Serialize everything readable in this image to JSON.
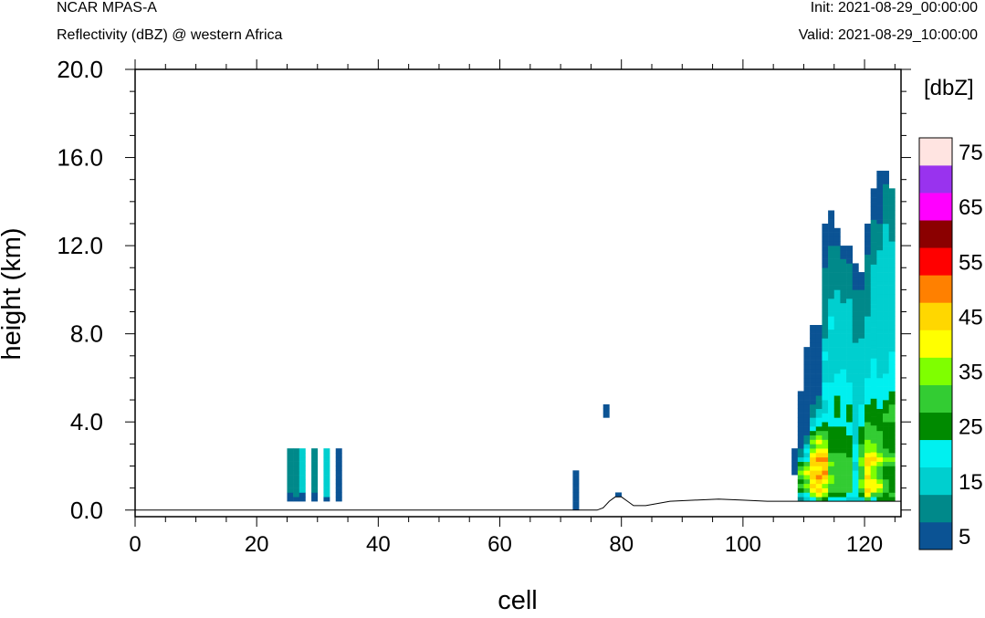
{
  "header": {
    "model": "NCAR MPAS-A",
    "field": "Reflectivity (dBZ) @ western Africa",
    "init": "Init: 2021-08-29_00:00:00",
    "valid": "Valid: 2021-08-29_10:00:00"
  },
  "chart_data": {
    "type": "heatmap",
    "title": "Reflectivity (dBZ) @ western Africa",
    "xlabel": "cell",
    "ylabel": "height (km)",
    "xlim": [
      0,
      126
    ],
    "ylim": [
      -0.3,
      20.0
    ],
    "xticks": [
      0,
      20,
      40,
      60,
      80,
      100,
      120
    ],
    "xtick_labels": [
      "0",
      "20",
      "40",
      "60",
      "80",
      "100",
      "120"
    ],
    "yticks": [
      0,
      4,
      8,
      12,
      16,
      20
    ],
    "ytick_labels": [
      "0.0",
      "4.0",
      "8.0",
      "12.0",
      "16.0",
      "20.0"
    ],
    "colorbar": {
      "title": "[dbZ]",
      "levels": [
        5,
        10,
        15,
        20,
        25,
        30,
        35,
        40,
        45,
        50,
        55,
        60,
        65,
        70,
        75
      ],
      "labels": [
        "5",
        "15",
        "25",
        "35",
        "45",
        "55",
        "65",
        "75"
      ],
      "colors": [
        "#0b5394",
        "#00898a",
        "#00cfcf",
        "#00f0f0",
        "#008a00",
        "#33cc33",
        "#7fff00",
        "#ffff00",
        "#ffd700",
        "#ff8000",
        "#ff0000",
        "#8b0000",
        "#ff00ff",
        "#9933ee",
        "#ffe4e1"
      ]
    },
    "terrain": [
      [
        0,
        0
      ],
      [
        76,
        0
      ],
      [
        77,
        0.1
      ],
      [
        78,
        0.4
      ],
      [
        79,
        0.6
      ],
      [
        80,
        0.6
      ],
      [
        81,
        0.4
      ],
      [
        82,
        0.2
      ],
      [
        84,
        0.2
      ],
      [
        86,
        0.3
      ],
      [
        88,
        0.4
      ],
      [
        92,
        0.45
      ],
      [
        96,
        0.5
      ],
      [
        100,
        0.45
      ],
      [
        104,
        0.4
      ],
      [
        108,
        0.4
      ],
      [
        112,
        0.4
      ],
      [
        126,
        0.4
      ]
    ],
    "cells": [
      {
        "x": 25,
        "bottom": 0.4,
        "top": 2.8,
        "col": [
          0,
          0,
          1,
          1,
          1,
          1,
          1,
          1,
          1,
          1,
          1,
          1
        ]
      },
      {
        "x": 26,
        "bottom": 0.4,
        "top": 2.8,
        "col": [
          0,
          1,
          1,
          1,
          1,
          1,
          1,
          1,
          1,
          1,
          1,
          1
        ]
      },
      {
        "x": 27,
        "bottom": 0.4,
        "top": 2.8,
        "col": [
          0,
          0,
          2,
          2,
          2,
          2,
          2,
          2,
          2,
          2,
          2,
          2
        ]
      },
      {
        "x": 29,
        "bottom": 0.4,
        "top": 2.8,
        "col": [
          0,
          0,
          1,
          1,
          1,
          1,
          1,
          1,
          1,
          1,
          1,
          1
        ]
      },
      {
        "x": 31,
        "bottom": 0.4,
        "top": 2.8,
        "col": [
          0,
          2,
          2,
          2,
          2,
          2,
          2,
          2,
          2,
          2,
          2,
          2
        ]
      },
      {
        "x": 33,
        "bottom": 0.4,
        "top": 2.8,
        "col": [
          0,
          0,
          0,
          0,
          0,
          0,
          0,
          0,
          0,
          0,
          0,
          0
        ]
      },
      {
        "x": 72,
        "bottom": 0.0,
        "top": 1.8,
        "col": [
          0,
          0,
          0,
          0,
          0,
          0,
          0,
          0,
          0
        ]
      },
      {
        "x": 77,
        "bottom": 4.2,
        "top": 4.8,
        "col": [
          0,
          0,
          0
        ]
      },
      {
        "x": 79,
        "bottom": 0.6,
        "top": 0.8,
        "col": [
          0
        ]
      },
      {
        "x": 108,
        "bottom": 1.6,
        "top": 2.8,
        "col": [
          0,
          0,
          0,
          0,
          0,
          0
        ]
      },
      {
        "x": 109,
        "bottom": 0.4,
        "top": 5.4,
        "col": [
          1,
          2,
          4,
          5,
          4,
          5,
          6,
          5,
          4,
          2,
          1,
          1,
          0,
          0,
          0,
          0,
          0,
          0,
          0,
          0,
          0,
          0,
          0,
          0,
          0
        ]
      },
      {
        "x": 110,
        "bottom": 0.4,
        "top": 7.4,
        "col": [
          2,
          3,
          5,
          6,
          5,
          6,
          7,
          6,
          5,
          3,
          2,
          3,
          2,
          1,
          1,
          0,
          0,
          0,
          0,
          0,
          0,
          0,
          0,
          0,
          0,
          0,
          0,
          0,
          0,
          0,
          0,
          0,
          0,
          0,
          0
        ]
      },
      {
        "x": 111,
        "bottom": 0.4,
        "top": 8.4,
        "col": [
          3,
          6,
          7,
          8,
          7,
          8,
          8,
          7,
          8,
          8,
          7,
          6,
          5,
          6,
          5,
          4,
          3,
          2,
          2,
          1,
          1,
          1,
          0,
          0,
          0,
          0,
          0,
          0,
          0,
          0,
          0,
          0,
          0,
          0,
          0,
          0,
          0,
          0,
          0,
          0
        ]
      },
      {
        "x": 112,
        "bottom": 0.4,
        "top": 8.4,
        "col": [
          5,
          7,
          8,
          7,
          8,
          9,
          8,
          7,
          8,
          9,
          8,
          7,
          6,
          7,
          6,
          5,
          4,
          3,
          3,
          2,
          2,
          1,
          1,
          1,
          0,
          0,
          0,
          0,
          0,
          0,
          0,
          0,
          0,
          0,
          0,
          0,
          0,
          0,
          0,
          0
        ]
      },
      {
        "x": 113,
        "bottom": 0.4,
        "top": 13.0,
        "col": [
          4,
          6,
          7,
          6,
          7,
          8,
          9,
          8,
          8,
          9,
          8,
          7,
          6,
          6,
          5,
          5,
          4,
          4,
          3,
          3,
          2,
          2,
          2,
          3,
          3,
          3,
          3,
          2,
          2,
          2,
          2,
          2,
          3,
          3,
          2,
          2,
          2,
          1,
          1,
          1,
          1,
          1,
          1,
          1,
          1,
          1,
          1,
          1,
          1,
          1,
          1,
          1,
          1,
          0,
          0,
          0,
          0,
          0,
          0,
          0,
          0,
          0,
          0
        ]
      },
      {
        "x": 114,
        "bottom": 0.4,
        "top": 13.6,
        "col": [
          3,
          4,
          5,
          5,
          6,
          6,
          5,
          5,
          6,
          5,
          5,
          4,
          4,
          4,
          4,
          4,
          4,
          3,
          3,
          3,
          3,
          3,
          3,
          3,
          3,
          3,
          3,
          2,
          2,
          2,
          2,
          2,
          2,
          2,
          2,
          2,
          2,
          2,
          2,
          3,
          3,
          3,
          2,
          2,
          2,
          2,
          1,
          1,
          1,
          1,
          1,
          1,
          1,
          1,
          1,
          1,
          1,
          1,
          0,
          0,
          0,
          0,
          0,
          0,
          0,
          0
        ]
      },
      {
        "x": 115,
        "bottom": 0.4,
        "top": 12.8,
        "col": [
          3,
          4,
          5,
          5,
          5,
          5,
          5,
          5,
          5,
          5,
          5,
          4,
          4,
          4,
          4,
          4,
          4,
          3,
          3,
          4,
          4,
          4,
          4,
          4,
          3,
          3,
          3,
          3,
          3,
          2,
          2,
          2,
          2,
          2,
          2,
          2,
          2,
          2,
          2,
          2,
          2,
          2,
          2,
          2,
          2,
          2,
          2,
          2,
          1,
          1,
          1,
          1,
          1,
          1,
          1,
          1,
          1,
          1,
          0,
          0,
          0,
          0
        ]
      },
      {
        "x": 116,
        "bottom": 0.4,
        "top": 12.0,
        "col": [
          3,
          4,
          5,
          5,
          5,
          5,
          5,
          5,
          5,
          5,
          5,
          4,
          4,
          4,
          4,
          4,
          4,
          3,
          3,
          3,
          3,
          3,
          3,
          3,
          3,
          3,
          3,
          3,
          3,
          3,
          2,
          2,
          2,
          2,
          2,
          2,
          2,
          2,
          2,
          2,
          2,
          2,
          2,
          2,
          2,
          1,
          1,
          1,
          1,
          1,
          1,
          1,
          1,
          1,
          1,
          0,
          0,
          0
        ]
      },
      {
        "x": 117,
        "bottom": 0.4,
        "top": 12.0,
        "col": [
          2,
          3,
          5,
          5,
          5,
          5,
          5,
          5,
          5,
          5,
          4,
          4,
          4,
          4,
          4,
          3,
          3,
          3,
          4,
          4,
          4,
          4,
          3,
          3,
          3,
          3,
          3,
          2,
          2,
          2,
          2,
          2,
          2,
          2,
          2,
          2,
          2,
          2,
          2,
          2,
          2,
          2,
          2,
          2,
          2,
          2,
          1,
          1,
          1,
          1,
          1,
          1,
          1,
          1,
          0,
          0,
          0,
          0
        ]
      },
      {
        "x": 118,
        "bottom": 0.4,
        "top": 11.2,
        "col": [
          2,
          3,
          3,
          3,
          3,
          3,
          3,
          2,
          2,
          3,
          3,
          3,
          3,
          2,
          2,
          2,
          2,
          2,
          2,
          2,
          2,
          2,
          2,
          2,
          2,
          2,
          2,
          2,
          2,
          2,
          2,
          2,
          2,
          2,
          2,
          2,
          1,
          1,
          1,
          1,
          1,
          1,
          1,
          1,
          1,
          1,
          1,
          1,
          0,
          0,
          0,
          0,
          0,
          0
        ]
      },
      {
        "x": 119,
        "bottom": 0.4,
        "top": 10.8,
        "col": [
          2,
          4,
          5,
          6,
          6,
          5,
          5,
          5,
          6,
          6,
          5,
          5,
          5,
          4,
          4,
          4,
          4,
          3,
          3,
          3,
          3,
          3,
          2,
          2,
          2,
          2,
          2,
          2,
          2,
          2,
          2,
          2,
          2,
          2,
          2,
          2,
          2,
          1,
          1,
          1,
          1,
          1,
          1,
          1,
          1,
          1,
          1,
          1,
          0,
          0,
          0,
          0
        ]
      },
      {
        "x": 120,
        "bottom": 0.4,
        "top": 13.0,
        "col": [
          5,
          7,
          8,
          7,
          7,
          8,
          7,
          7,
          8,
          8,
          7,
          6,
          6,
          6,
          5,
          5,
          5,
          5,
          4,
          4,
          4,
          4,
          3,
          3,
          3,
          3,
          3,
          3,
          2,
          2,
          2,
          2,
          2,
          2,
          2,
          2,
          2,
          2,
          2,
          2,
          2,
          2,
          1,
          1,
          1,
          1,
          1,
          1,
          1,
          1,
          1,
          1,
          1,
          1,
          1,
          1,
          0,
          0,
          0,
          0,
          0,
          0,
          0
        ]
      },
      {
        "x": 121,
        "bottom": 0.4,
        "top": 14.6,
        "col": [
          3,
          5,
          7,
          7,
          7,
          6,
          6,
          6,
          7,
          8,
          7,
          6,
          6,
          5,
          5,
          5,
          5,
          4,
          4,
          4,
          4,
          4,
          4,
          3,
          3,
          3,
          3,
          3,
          3,
          3,
          3,
          3,
          2,
          2,
          2,
          2,
          2,
          2,
          2,
          2,
          2,
          2,
          2,
          2,
          2,
          2,
          2,
          2,
          2,
          2,
          2,
          2,
          2,
          1,
          1,
          1,
          1,
          1,
          1,
          1,
          1,
          1,
          1,
          0,
          0,
          0,
          0,
          0,
          0,
          0
        ]
      },
      {
        "x": 122,
        "bottom": 0.4,
        "top": 15.4,
        "col": [
          4,
          5,
          6,
          7,
          6,
          5,
          5,
          5,
          6,
          7,
          6,
          5,
          5,
          5,
          5,
          5,
          4,
          4,
          4,
          4,
          4,
          3,
          3,
          3,
          3,
          3,
          3,
          3,
          2,
          2,
          2,
          2,
          2,
          2,
          2,
          2,
          2,
          2,
          2,
          2,
          2,
          2,
          2,
          2,
          2,
          2,
          2,
          2,
          2,
          2,
          2,
          2,
          2,
          2,
          2,
          2,
          2,
          1,
          1,
          1,
          1,
          1,
          1,
          0,
          0,
          0,
          0,
          0,
          0,
          0,
          0,
          0,
          0,
          0,
          0
        ]
      },
      {
        "x": 123,
        "bottom": 0.4,
        "top": 15.4,
        "col": [
          4,
          4,
          5,
          5,
          5,
          4,
          4,
          4,
          5,
          6,
          5,
          5,
          4,
          4,
          4,
          4,
          4,
          4,
          5,
          5,
          4,
          4,
          4,
          3,
          3,
          3,
          3,
          3,
          3,
          2,
          2,
          2,
          2,
          2,
          2,
          2,
          2,
          2,
          2,
          2,
          2,
          2,
          2,
          2,
          2,
          2,
          2,
          2,
          2,
          2,
          2,
          2,
          2,
          2,
          2,
          2,
          2,
          2,
          2,
          2,
          2,
          2,
          2,
          1,
          1,
          1,
          1,
          1,
          1,
          1,
          1,
          1,
          0,
          0,
          0
        ]
      },
      {
        "x": 124,
        "bottom": 0.4,
        "top": 14.6,
        "col": [
          4,
          5,
          4,
          4,
          4,
          4,
          4,
          4,
          5,
          6,
          5,
          4,
          4,
          4,
          4,
          4,
          4,
          4,
          5,
          5,
          5,
          5,
          4,
          4,
          4,
          3,
          3,
          3,
          3,
          3,
          3,
          3,
          3,
          3,
          2,
          2,
          2,
          2,
          2,
          2,
          2,
          2,
          2,
          2,
          2,
          2,
          2,
          2,
          2,
          2,
          2,
          2,
          2,
          2,
          2,
          2,
          2,
          2,
          2,
          1,
          1,
          1,
          1,
          1,
          1,
          1,
          1,
          1,
          1,
          1,
          1
        ]
      }
    ]
  }
}
